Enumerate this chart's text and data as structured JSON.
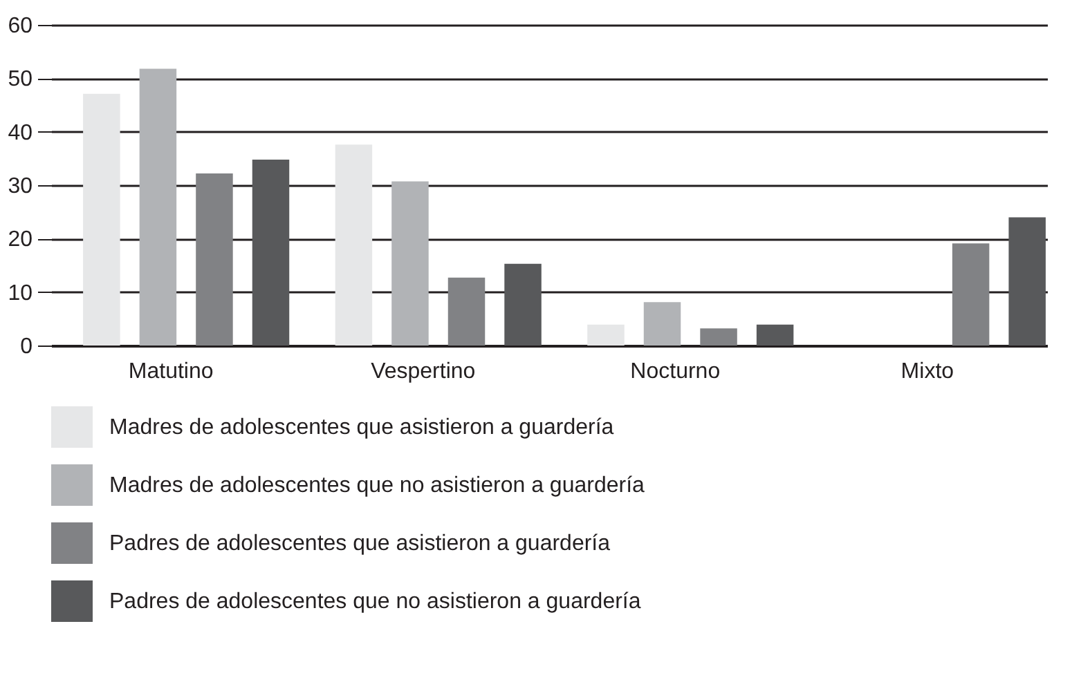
{
  "chart_data": {
    "type": "bar",
    "categories": [
      "Matutino",
      "Vespertino",
      "Nocturno",
      "Mixto"
    ],
    "series": [
      {
        "name": "Madres de adolescentes que asistieron a guardería",
        "color": "#e6e7e8",
        "values": [
          47.1,
          37.6,
          3.9,
          null
        ]
      },
      {
        "name": "Madres de adolescentes que no asistieron a guardería",
        "color": "#b1b3b6",
        "values": [
          51.8,
          30.7,
          8.1,
          null
        ]
      },
      {
        "name": "Padres de adolescentes que asistieron a guardería",
        "color": "#818285",
        "values": [
          32.2,
          12.7,
          3.2,
          19.1
        ]
      },
      {
        "name": "Padres de adolescentes que no asistieron a guardería",
        "color": "#58595b",
        "values": [
          34.8,
          15.3,
          3.9,
          24.0
        ]
      }
    ],
    "ylim": [
      0,
      60
    ],
    "yticks": [
      0,
      10,
      20,
      30,
      40,
      50,
      60
    ],
    "grid": "y",
    "legend": "bottom"
  }
}
